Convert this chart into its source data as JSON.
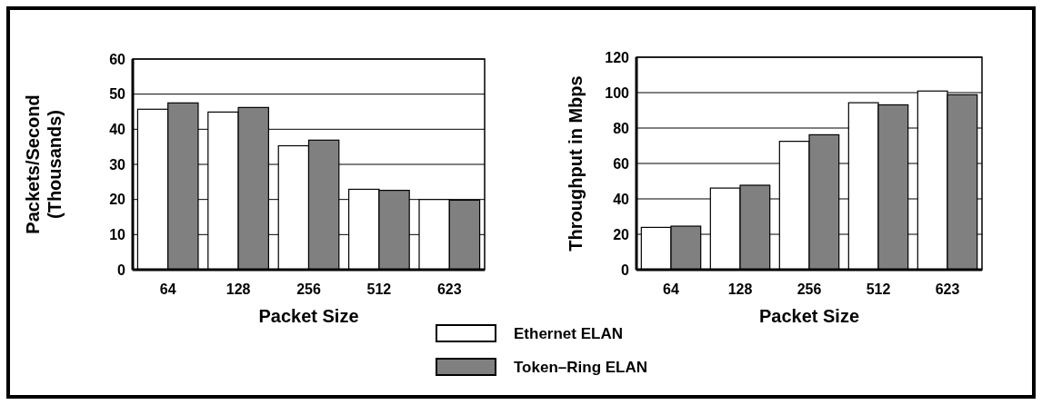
{
  "chart_data": [
    {
      "type": "bar",
      "categories": [
        "64",
        "128",
        "256",
        "512",
        "623"
      ],
      "xlabel": "Packet Size",
      "ylabel": "Packets/Second\n(Thousands)",
      "ylim": [
        0,
        60
      ],
      "yticks": [
        0,
        10,
        20,
        30,
        40,
        50,
        60
      ],
      "grid": "y",
      "series": [
        {
          "color": "#ffffff",
          "values": [
            45.7,
            44.9,
            35.3,
            22.9,
            20.0
          ]
        },
        {
          "color": "#808080",
          "values": [
            47.5,
            46.2,
            36.9,
            22.6,
            19.8
          ]
        }
      ]
    },
    {
      "type": "bar",
      "categories": [
        "64",
        "128",
        "256",
        "512",
        "623"
      ],
      "xlabel": "Packet Size",
      "ylabel": "Throughput in Mbps",
      "ylim": [
        0,
        120
      ],
      "yticks": [
        0,
        20,
        40,
        60,
        80,
        100,
        120
      ],
      "grid": "y",
      "legend": "bottom left",
      "series": [
        {
          "name": "Ethernet ELAN",
          "color": "#ffffff",
          "values": [
            23.9,
            46.1,
            72.5,
            94.3,
            100.9
          ]
        },
        {
          "name": "Token–Ring ELAN",
          "color": "#808080",
          "values": [
            24.6,
            47.7,
            76.2,
            93.1,
            98.8
          ]
        }
      ]
    }
  ]
}
